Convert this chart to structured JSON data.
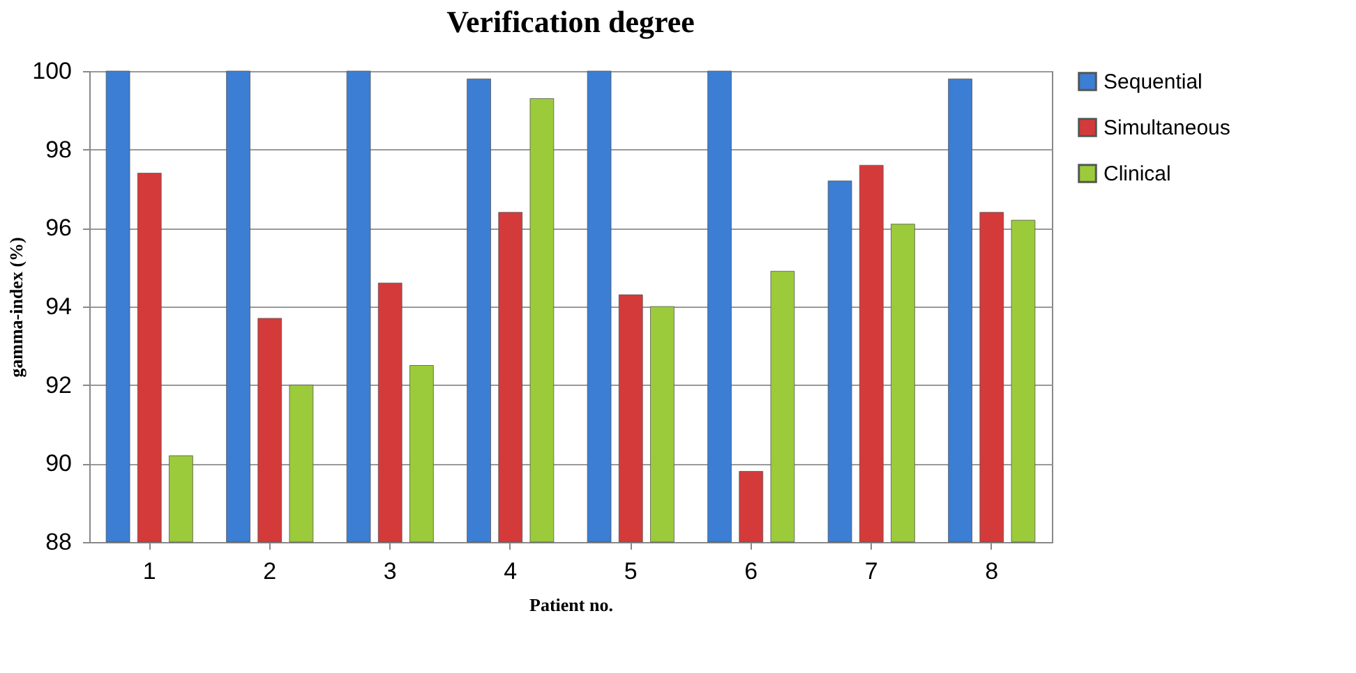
{
  "chart_data": {
    "type": "bar",
    "title": "Verification degree",
    "xlabel": "Patient no.",
    "ylabel": "gamma-index (%)",
    "categories": [
      "1",
      "2",
      "3",
      "4",
      "5",
      "6",
      "7",
      "8"
    ],
    "series": [
      {
        "name": "Sequential",
        "color": "#3b7ed3",
        "values": [
          100,
          100,
          100,
          99.8,
          100,
          100,
          97.2,
          99.8
        ]
      },
      {
        "name": "Simultaneous",
        "color": "#d43a3a",
        "values": [
          97.4,
          93.7,
          94.6,
          96.4,
          94.3,
          89.8,
          97.6,
          96.4
        ]
      },
      {
        "name": "Clinical",
        "color": "#9bcb3a",
        "values": [
          90.2,
          92.0,
          92.5,
          99.3,
          94.0,
          94.9,
          96.1,
          96.2
        ]
      }
    ],
    "ylim": [
      88,
      100
    ],
    "yticks": [
      88,
      90,
      92,
      94,
      96,
      98,
      100
    ],
    "grid": "y",
    "legend": "right"
  }
}
